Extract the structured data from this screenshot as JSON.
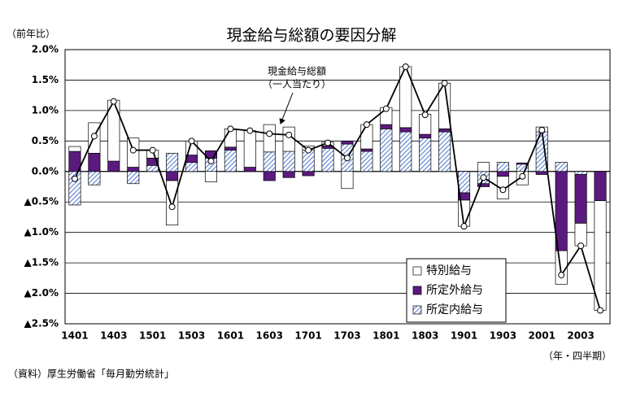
{
  "chart_data": {
    "type": "bar_line",
    "title": "現金給与総額の要因分解",
    "y_axis_label": "（前年比）",
    "x_axis_label": "（年・四半期）",
    "source": "（資料）厚生労働省「毎月勤労統計」",
    "annotation": [
      "現金給与総額",
      "（一人当たり）"
    ],
    "categories": [
      "1401",
      null,
      "1403",
      null,
      "1501",
      null,
      "1503",
      null,
      "1601",
      null,
      "1603",
      null,
      "1701",
      null,
      "1703",
      null,
      "1801",
      null,
      "1803",
      null,
      "1901",
      null,
      "1903",
      null,
      "2001",
      null,
      "2003",
      null
    ],
    "series": [
      {
        "name": "所定内給与",
        "kind": "bar",
        "color": "#6f8fd8",
        "values": [
          -0.55,
          -0.22,
          0,
          -0.2,
          0.1,
          0.3,
          0.15,
          0.22,
          0.35,
          0,
          0.32,
          0.33,
          0.35,
          0.38,
          0.45,
          0.33,
          0.7,
          0.65,
          0.55,
          0.65,
          -0.35,
          -0.2,
          0.15,
          0.12,
          0.65,
          0.15,
          -0.05,
          0
        ]
      },
      {
        "name": "所定外給与",
        "kind": "bar",
        "color": "#5b1a80",
        "values": [
          0.33,
          0.3,
          0.17,
          0.07,
          0.12,
          -0.15,
          0.12,
          0.12,
          0.05,
          0.07,
          -0.15,
          -0.1,
          -0.07,
          0.04,
          0.05,
          0.04,
          0.07,
          0.07,
          0.06,
          0.05,
          -0.12,
          -0.05,
          -0.08,
          0.02,
          -0.05,
          -1.3,
          -0.8,
          -0.48
        ]
      },
      {
        "name": "特別給与",
        "kind": "bar",
        "color": "#ffffff",
        "values": [
          0.08,
          0.5,
          1.0,
          0.48,
          0.13,
          -0.73,
          0.23,
          -0.17,
          0.3,
          0.6,
          0.45,
          0.4,
          0.07,
          0.06,
          -0.28,
          0.4,
          0.28,
          1.0,
          0.33,
          0.75,
          -0.43,
          0.15,
          -0.37,
          -0.22,
          0.08,
          -0.55,
          -0.37,
          -1.8
        ]
      },
      {
        "name": "現金給与総額",
        "kind": "line",
        "color": "#000000",
        "values": [
          -0.12,
          0.58,
          1.15,
          0.35,
          0.35,
          -0.58,
          0.5,
          0.17,
          0.7,
          0.67,
          0.62,
          0.6,
          0.35,
          0.47,
          0.22,
          0.77,
          1.03,
          1.72,
          0.93,
          1.45,
          -0.9,
          -0.1,
          -0.3,
          -0.08,
          0.68,
          -1.7,
          -1.22,
          -2.28
        ]
      }
    ],
    "ylim": [
      -2.5,
      2.0
    ],
    "yticks": [
      {
        "value": 2.0,
        "label": "2.0%"
      },
      {
        "value": 1.5,
        "label": "1.5%"
      },
      {
        "value": 1.0,
        "label": "1.0%"
      },
      {
        "value": 0.5,
        "label": "0.5%"
      },
      {
        "value": 0,
        "label": "0.0%"
      },
      {
        "value": -0.5,
        "label": "▲0.5%"
      },
      {
        "value": -1.0,
        "label": "▲1.0%"
      },
      {
        "value": -1.5,
        "label": "▲1.5%"
      },
      {
        "value": -2.0,
        "label": "▲2.0%"
      },
      {
        "value": -2.5,
        "label": "▲2.5%"
      }
    ],
    "grid": true,
    "legend": "lower right"
  }
}
